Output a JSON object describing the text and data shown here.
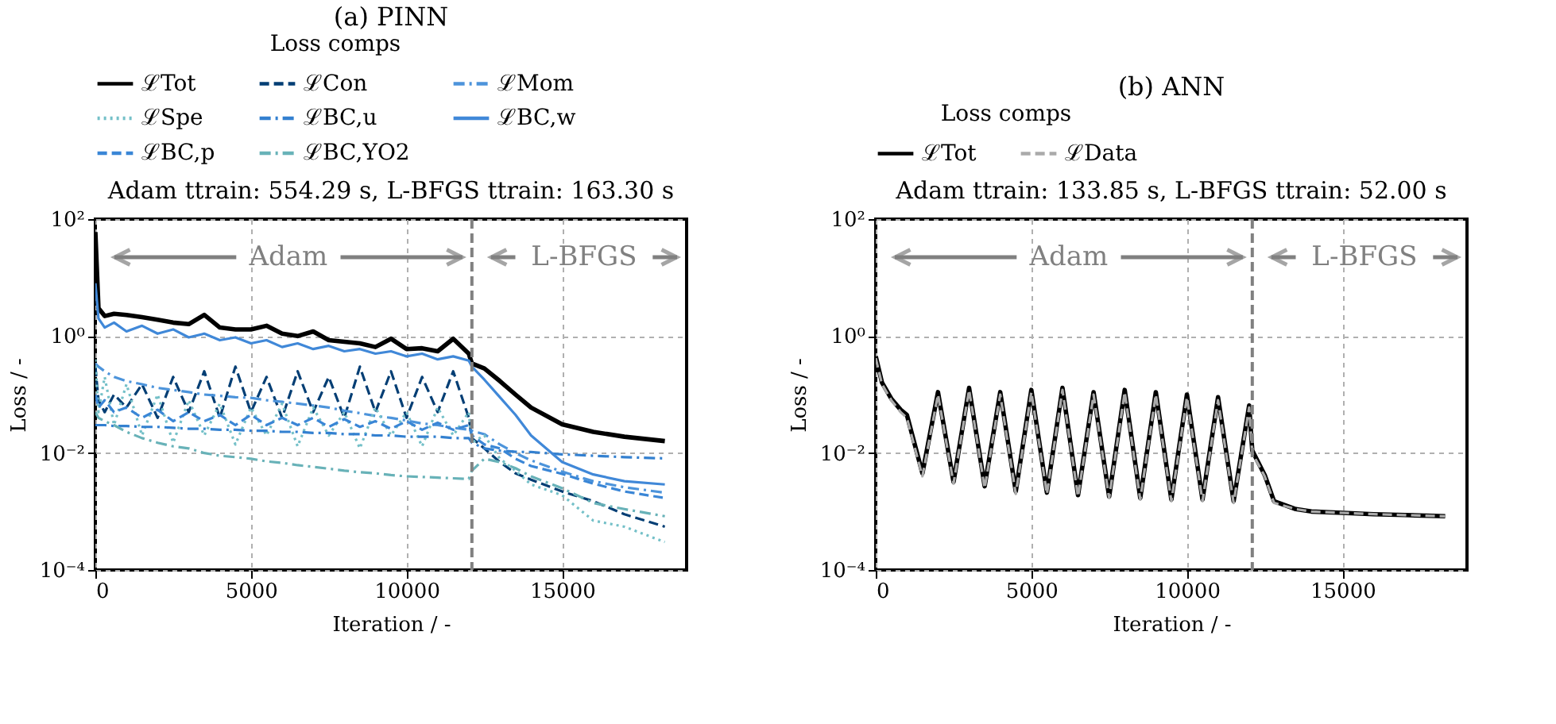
{
  "chart_data": [
    {
      "type": "line",
      "title": "(a) PINN",
      "subtitle": "Adam ttrain: 554.29 s, L-BFGS ttrain: 163.30 s",
      "xlabel": "Iteration / -",
      "ylabel": "Loss / -",
      "legend_title": "Loss comps",
      "legend": "top",
      "log": true,
      "grid": true,
      "xlim": [
        0,
        19000
      ],
      "xticks": [
        0,
        5000,
        10000,
        15000
      ],
      "ylim": [
        0.0001,
        100
      ],
      "yticks": [
        {
          "value": 0.0001,
          "label": "10⁻⁴"
        },
        {
          "value": 0.01,
          "label": "10⁻²"
        },
        {
          "value": 1,
          "label": "10⁰"
        },
        {
          "value": 100,
          "label": "10²"
        }
      ],
      "ref_lines": [
        {
          "axis": "x",
          "value": 12100,
          "color": "#808080",
          "line_style": "dashed"
        }
      ],
      "annotations": [
        "Adam",
        "L-BFGS"
      ],
      "x": [
        0,
        100,
        300,
        600,
        1000,
        1500,
        2000,
        2500,
        3000,
        3500,
        4000,
        4500,
        5000,
        5500,
        6000,
        6500,
        7000,
        7500,
        8000,
        8500,
        9000,
        9500,
        10000,
        10500,
        11000,
        11500,
        12000,
        12100,
        12500,
        13000,
        13500,
        14000,
        15000,
        16000,
        17000,
        18300
      ],
      "series": [
        {
          "name": "ℒTot",
          "color": "#000000",
          "line_style": "solid",
          "values": [
            60,
            3.0,
            2.2,
            2.4,
            2.3,
            2.1,
            1.9,
            1.7,
            1.6,
            2.3,
            1.4,
            1.3,
            1.3,
            1.5,
            1.1,
            1.0,
            1.2,
            0.85,
            0.8,
            0.75,
            0.65,
            0.9,
            0.6,
            0.62,
            0.55,
            0.9,
            0.5,
            0.34,
            0.28,
            0.17,
            0.1,
            0.06,
            0.031,
            0.023,
            0.019,
            0.016
          ]
        },
        {
          "name": "ℒCon",
          "color": "#033e74",
          "line_style": "dashed",
          "values": [
            0.3,
            0.08,
            0.05,
            0.1,
            0.06,
            0.15,
            0.04,
            0.2,
            0.05,
            0.25,
            0.04,
            0.3,
            0.05,
            0.2,
            0.04,
            0.25,
            0.05,
            0.2,
            0.04,
            0.3,
            0.05,
            0.25,
            0.04,
            0.2,
            0.05,
            0.25,
            0.04,
            0.018,
            0.012,
            0.007,
            0.0045,
            0.0035,
            0.0022,
            0.0015,
            0.0009,
            0.00055
          ]
        },
        {
          "name": "ℒMom",
          "color": "#4d94db",
          "line_style": "dashdot",
          "values": [
            0.34,
            0.3,
            0.25,
            0.2,
            0.17,
            0.15,
            0.13,
            0.12,
            0.11,
            0.1,
            0.095,
            0.09,
            0.088,
            0.08,
            0.075,
            0.07,
            0.065,
            0.06,
            0.053,
            0.048,
            0.043,
            0.04,
            0.036,
            0.032,
            0.03,
            0.027,
            0.025,
            0.024,
            0.021,
            0.014,
            0.01,
            0.0075,
            0.0048,
            0.0033,
            0.0026,
            0.0021
          ]
        },
        {
          "name": "ℒSpe",
          "color": "#74c0c8",
          "line_style": "dotted",
          "values": [
            0.4,
            0.05,
            0.2,
            0.03,
            0.15,
            0.02,
            0.1,
            0.015,
            0.08,
            0.02,
            0.07,
            0.014,
            0.06,
            0.02,
            0.07,
            0.013,
            0.06,
            0.02,
            0.05,
            0.012,
            0.06,
            0.02,
            0.05,
            0.013,
            0.06,
            0.02,
            0.05,
            0.015,
            0.02,
            0.008,
            0.005,
            0.0029,
            0.0019,
            0.0007,
            0.00055,
            0.0003
          ]
        },
        {
          "name": "ℒBC,u",
          "color": "#3380d0",
          "line_style": "dashdot",
          "values": [
            0.03,
            0.03,
            0.03,
            0.029,
            0.029,
            0.028,
            0.028,
            0.027,
            0.026,
            0.026,
            0.025,
            0.025,
            0.024,
            0.024,
            0.023,
            0.023,
            0.022,
            0.022,
            0.021,
            0.021,
            0.02,
            0.02,
            0.019,
            0.019,
            0.019,
            0.018,
            0.018,
            0.015,
            0.012,
            0.011,
            0.0105,
            0.0104,
            0.0095,
            0.009,
            0.0085,
            0.0081
          ]
        },
        {
          "name": "ℒBC,w",
          "color": "#4088d8",
          "line_style": "solid",
          "values": [
            8,
            2.0,
            1.4,
            1.7,
            1.2,
            1.5,
            1.1,
            1.3,
            0.95,
            1.1,
            0.85,
            0.95,
            0.75,
            0.85,
            0.65,
            0.75,
            0.6,
            0.68,
            0.55,
            0.6,
            0.5,
            0.55,
            0.45,
            0.5,
            0.4,
            0.45,
            0.38,
            0.3,
            0.18,
            0.09,
            0.045,
            0.02,
            0.007,
            0.0043,
            0.0033,
            0.0029
          ]
        },
        {
          "name": "ℒBC,p",
          "color": "#3a86d6",
          "line_style": "dashed",
          "values": [
            0.1,
            0.06,
            0.08,
            0.05,
            0.06,
            0.04,
            0.055,
            0.035,
            0.05,
            0.035,
            0.045,
            0.03,
            0.045,
            0.03,
            0.04,
            0.03,
            0.04,
            0.028,
            0.038,
            0.028,
            0.035,
            0.026,
            0.035,
            0.025,
            0.033,
            0.025,
            0.03,
            0.02,
            0.014,
            0.012,
            0.008,
            0.006,
            0.0044,
            0.003,
            0.0022,
            0.0017
          ]
        },
        {
          "name": "ℒBC,YO2",
          "color": "#68b2b8",
          "line_style": "dashdot",
          "values": [
            0.05,
            0.04,
            0.035,
            0.03,
            0.023,
            0.018,
            0.015,
            0.013,
            0.012,
            0.01,
            0.009,
            0.0085,
            0.008,
            0.0072,
            0.0068,
            0.0062,
            0.0058,
            0.0054,
            0.005,
            0.0047,
            0.0045,
            0.0042,
            0.004,
            0.0039,
            0.0038,
            0.0037,
            0.0036,
            0.005,
            0.008,
            0.007,
            0.0055,
            0.004,
            0.0025,
            0.0014,
            0.0011,
            0.00083
          ]
        }
      ]
    },
    {
      "type": "line",
      "title": "(b) ANN",
      "subtitle": "Adam ttrain: 133.85 s, L-BFGS ttrain: 52.00 s",
      "xlabel": "Iteration / -",
      "ylabel": "Loss / -",
      "legend_title": "Loss comps",
      "legend": "top",
      "log": true,
      "grid": true,
      "xlim": [
        0,
        19000
      ],
      "xticks": [
        0,
        5000,
        10000,
        15000
      ],
      "ylim": [
        0.0001,
        100
      ],
      "yticks": [
        {
          "value": 0.0001,
          "label": "10⁻⁴"
        },
        {
          "value": 0.01,
          "label": "10⁻²"
        },
        {
          "value": 1,
          "label": "10⁰"
        },
        {
          "value": 100,
          "label": "10²"
        }
      ],
      "ref_lines": [
        {
          "axis": "x",
          "value": 12100,
          "color": "#808080",
          "line_style": "dashed"
        }
      ],
      "annotations": [
        "Adam",
        "L-BFGS"
      ],
      "x": [
        0,
        200,
        500,
        800,
        1000,
        1500,
        2000,
        2500,
        3000,
        3500,
        4000,
        4500,
        5000,
        5500,
        6000,
        6500,
        7000,
        7500,
        8000,
        8500,
        9000,
        9500,
        10000,
        10500,
        11000,
        11500,
        12000,
        12100,
        12500,
        12800,
        13500,
        14000,
        15000,
        16000,
        17000,
        18300
      ],
      "series": [
        {
          "name": "ℒTot",
          "color": "#000000",
          "line_style": "solid",
          "values": [
            0.45,
            0.16,
            0.085,
            0.055,
            0.045,
            0.0045,
            0.11,
            0.0032,
            0.13,
            0.0027,
            0.11,
            0.0022,
            0.12,
            0.0021,
            0.13,
            0.0019,
            0.11,
            0.0018,
            0.12,
            0.0017,
            0.11,
            0.0016,
            0.1,
            0.0016,
            0.09,
            0.0015,
            0.065,
            0.011,
            0.0042,
            0.0015,
            0.0011,
            0.001,
            0.00095,
            0.0009,
            0.00087,
            0.00083
          ]
        },
        {
          "name": "ℒData",
          "color": "#aaaaaa",
          "line_style": "dashed",
          "values": [
            0.42,
            0.15,
            0.08,
            0.05,
            0.04,
            0.004,
            0.1,
            0.003,
            0.12,
            0.0025,
            0.1,
            0.002,
            0.11,
            0.002,
            0.12,
            0.0018,
            0.1,
            0.0017,
            0.11,
            0.0016,
            0.1,
            0.0015,
            0.09,
            0.0015,
            0.08,
            0.0014,
            0.06,
            0.01,
            0.004,
            0.0014,
            0.0011,
            0.001,
            0.00095,
            0.0009,
            0.00087,
            0.00083
          ]
        }
      ]
    }
  ]
}
